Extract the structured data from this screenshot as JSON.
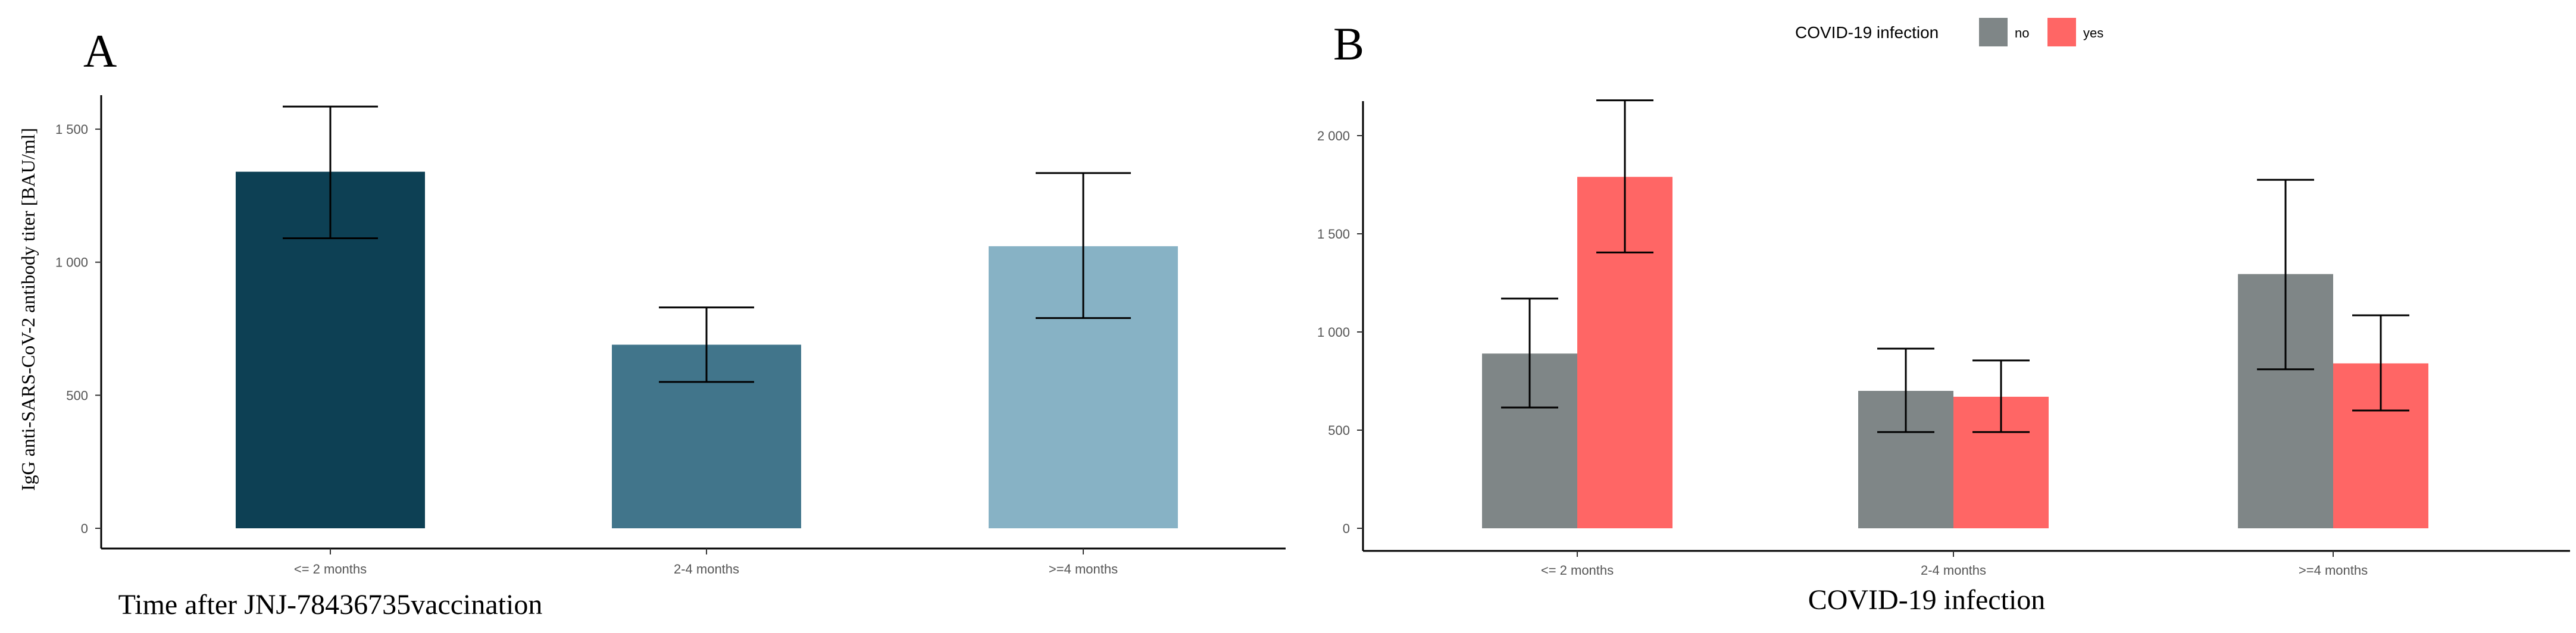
{
  "chart_data": [
    {
      "panel": "A",
      "type": "bar",
      "categories": [
        "<= 2 months",
        "2-4 months",
        ">=4 months"
      ],
      "values": [
        1340,
        690,
        1060
      ],
      "error_low": [
        1090,
        550,
        790
      ],
      "error_high": [
        1585,
        830,
        1335
      ],
      "colors": [
        "#0d4054",
        "#41758b",
        "#87b2c5"
      ],
      "xlabel": "Time after JNJ-78436735vaccination",
      "ylabel": "IgG anti-SARS-CoV-2 antibody titer [BAU/ml]",
      "ylim": [
        0,
        1650
      ],
      "yticks": [
        0,
        500,
        1000,
        1500
      ],
      "ytick_labels": [
        "0",
        "500",
        "1 000",
        "1 500"
      ],
      "grid": false
    },
    {
      "panel": "B",
      "type": "bar",
      "categories": [
        "<= 2 months",
        "2-4 months",
        ">=4 months"
      ],
      "series": [
        {
          "name": "no",
          "color": "#7f8687",
          "values": [
            890,
            700,
            1295
          ],
          "error_low": [
            615,
            490,
            810
          ],
          "error_high": [
            1170,
            915,
            1775
          ]
        },
        {
          "name": "yes",
          "color": "#ff6665",
          "values": [
            1790,
            670,
            840
          ],
          "error_low": [
            1405,
            490,
            600
          ],
          "error_high": [
            2180,
            855,
            1085
          ]
        }
      ],
      "legend_title": "COVID-19 infection",
      "legend_position": "top",
      "xlabel": "COVID-19 infection",
      "ylabel": "",
      "ylim": [
        0,
        2250
      ],
      "yticks": [
        0,
        500,
        1000,
        1500,
        2000
      ],
      "ytick_labels": [
        "0",
        "500",
        "1 000",
        "1 500",
        "2 000"
      ],
      "grid": false
    }
  ]
}
